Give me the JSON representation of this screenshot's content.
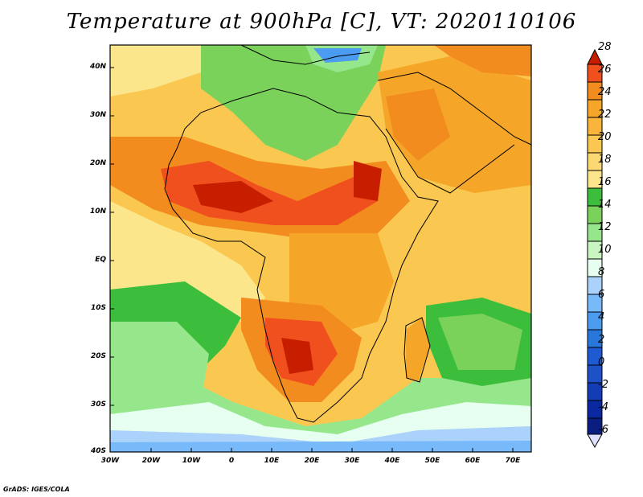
{
  "title": "Temperature at 900hPa [C], VT: 2020110106",
  "y_ticks": [
    "40N",
    "30N",
    "20N",
    "10N",
    "EQ",
    "10S",
    "20S",
    "30S",
    "40S"
  ],
  "x_ticks": [
    "30W",
    "20W",
    "10W",
    "0",
    "10E",
    "20E",
    "30E",
    "40E",
    "50E",
    "60E",
    "70E"
  ],
  "colorbar": {
    "labels": [
      "28",
      "26",
      "24",
      "22",
      "20",
      "18",
      "16",
      "14",
      "12",
      "10",
      "8",
      "6",
      "4",
      "2",
      "0",
      "-2",
      "-4",
      "-6"
    ],
    "colors": [
      "#c81e00",
      "#f0501e",
      "#f28c1e",
      "#f5a528",
      "#fac850",
      "#fce68c",
      "#7ad25a",
      "#3cbe3c",
      "#96e68c",
      "#e6fff0",
      "#aad2fa",
      "#78b9fa",
      "#4b9bf0",
      "#2878dc",
      "#1e5ad2",
      "#143cb4",
      "#0a1e82",
      "#e0e0ff"
    ]
  },
  "credit": "GrADS: IGES/COLA"
}
